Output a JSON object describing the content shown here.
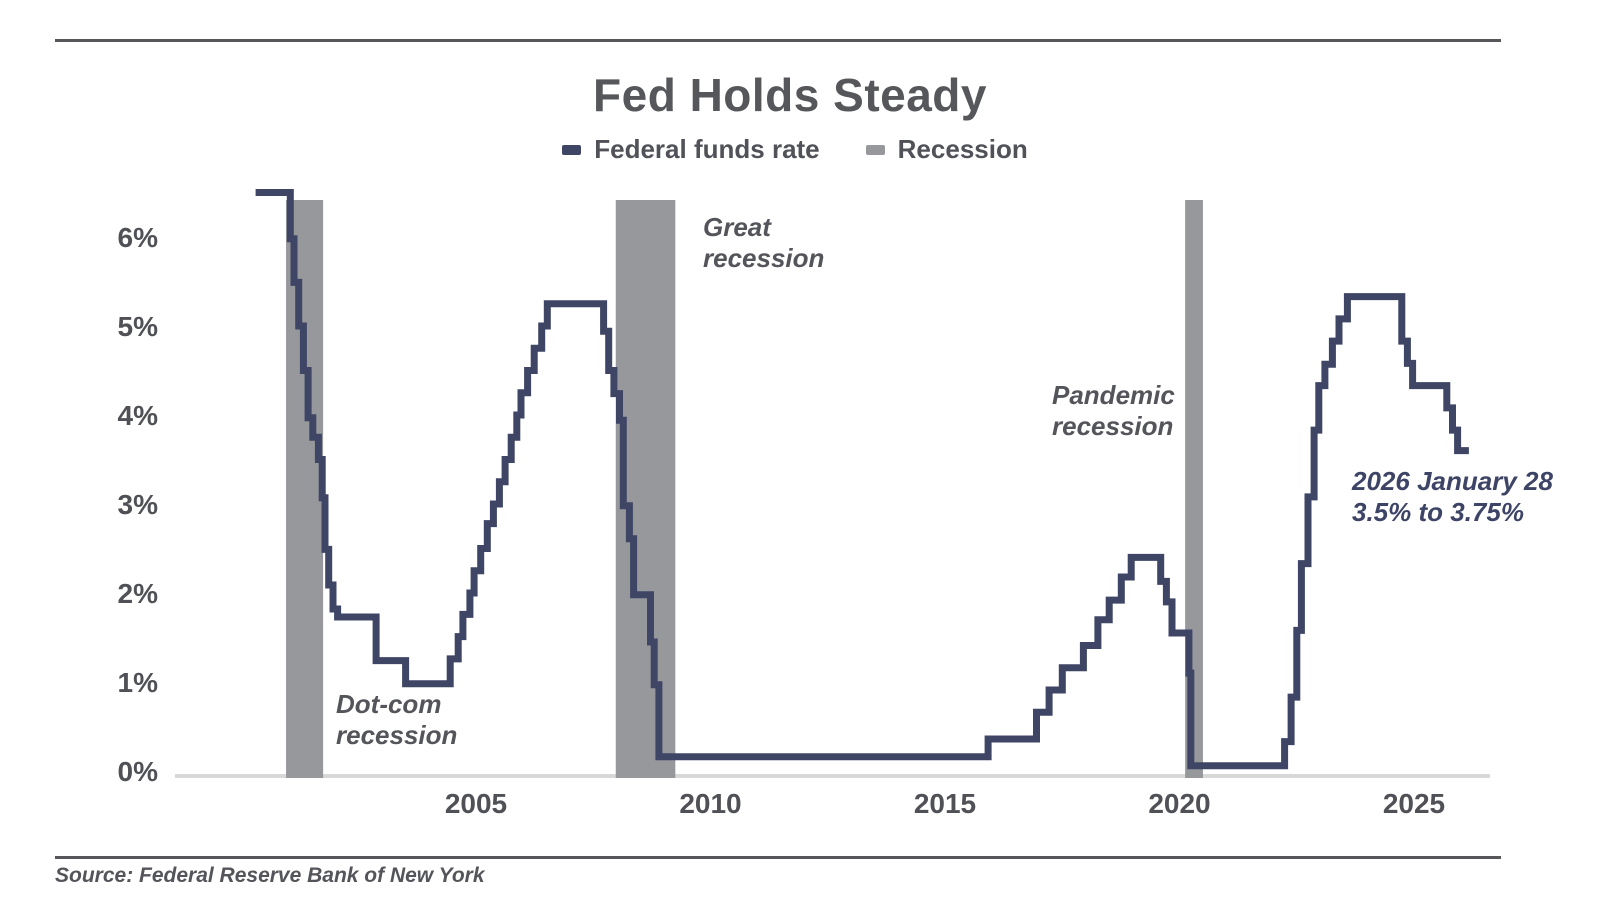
{
  "header": {
    "title": "Fed Holds Steady"
  },
  "legend": {
    "items": [
      {
        "label": "Federal funds rate",
        "color": "#3e4565"
      },
      {
        "label": "Recession",
        "color": "#97989c"
      }
    ]
  },
  "chart_data": {
    "type": "line",
    "title": "Fed Holds Steady",
    "xlabel": "",
    "ylabel": "",
    "grid": false,
    "legend_position": "top",
    "xlim": [
      1998.58,
      2026.62
    ],
    "ylim": [
      0,
      6.42
    ],
    "x_ticks": [
      {
        "label": "2005",
        "value": 2005
      },
      {
        "label": "2010",
        "value": 2010
      },
      {
        "label": "2015",
        "value": 2015
      },
      {
        "label": "2020",
        "value": 2020
      },
      {
        "label": "2025",
        "value": 2025
      }
    ],
    "y_ticks": [
      {
        "label": "0%",
        "value": 0
      },
      {
        "label": "1%",
        "value": 1
      },
      {
        "label": "2%",
        "value": 2
      },
      {
        "label": "3%",
        "value": 3
      },
      {
        "label": "4%",
        "value": 4
      },
      {
        "label": "5%",
        "value": 5
      },
      {
        "label": "6%",
        "value": 6
      }
    ],
    "series": [
      {
        "name": "Federal funds rate",
        "color": "#3e4565",
        "style": "step-after",
        "unit": "percent",
        "points": [
          [
            2000.3,
            6.5
          ],
          [
            2001.04,
            5.98
          ],
          [
            2001.12,
            5.49
          ],
          [
            2001.22,
            5.0
          ],
          [
            2001.32,
            4.5
          ],
          [
            2001.42,
            3.97
          ],
          [
            2001.52,
            3.75
          ],
          [
            2001.64,
            3.5
          ],
          [
            2001.72,
            3.07
          ],
          [
            2001.78,
            2.49
          ],
          [
            2001.86,
            2.09
          ],
          [
            2001.95,
            1.82
          ],
          [
            2002.05,
            1.73
          ],
          [
            2002.87,
            1.24
          ],
          [
            2003.5,
            0.98
          ],
          [
            2004.45,
            1.26
          ],
          [
            2004.62,
            1.51
          ],
          [
            2004.72,
            1.76
          ],
          [
            2004.87,
            2.0
          ],
          [
            2004.96,
            2.25
          ],
          [
            2005.1,
            2.5
          ],
          [
            2005.24,
            2.78
          ],
          [
            2005.37,
            3.0
          ],
          [
            2005.5,
            3.25
          ],
          [
            2005.62,
            3.5
          ],
          [
            2005.75,
            3.75
          ],
          [
            2005.87,
            4.0
          ],
          [
            2005.96,
            4.25
          ],
          [
            2006.1,
            4.5
          ],
          [
            2006.24,
            4.75
          ],
          [
            2006.4,
            5.0
          ],
          [
            2006.52,
            5.25
          ],
          [
            2007.72,
            4.94
          ],
          [
            2007.83,
            4.5
          ],
          [
            2007.94,
            4.24
          ],
          [
            2008.06,
            3.94
          ],
          [
            2008.14,
            2.98
          ],
          [
            2008.27,
            2.61
          ],
          [
            2008.36,
            1.98
          ],
          [
            2008.72,
            1.45
          ],
          [
            2008.8,
            0.97
          ],
          [
            2008.9,
            0.16
          ],
          [
            2015.92,
            0.36
          ],
          [
            2016.95,
            0.66
          ],
          [
            2017.22,
            0.91
          ],
          [
            2017.5,
            1.16
          ],
          [
            2017.95,
            1.41
          ],
          [
            2018.26,
            1.7
          ],
          [
            2018.5,
            1.92
          ],
          [
            2018.76,
            2.18
          ],
          [
            2018.97,
            2.4
          ],
          [
            2019.6,
            2.13
          ],
          [
            2019.72,
            1.9
          ],
          [
            2019.84,
            1.55
          ],
          [
            2020.2,
            1.1
          ],
          [
            2020.24,
            0.06
          ],
          [
            2022.24,
            0.33
          ],
          [
            2022.38,
            0.83
          ],
          [
            2022.5,
            1.58
          ],
          [
            2022.6,
            2.33
          ],
          [
            2022.74,
            3.08
          ],
          [
            2022.87,
            3.83
          ],
          [
            2022.97,
            4.33
          ],
          [
            2023.1,
            4.57
          ],
          [
            2023.26,
            4.83
          ],
          [
            2023.4,
            5.08
          ],
          [
            2023.58,
            5.33
          ],
          [
            2024.74,
            4.83
          ],
          [
            2024.86,
            4.58
          ],
          [
            2024.97,
            4.33
          ],
          [
            2025.7,
            4.08
          ],
          [
            2025.82,
            3.83
          ],
          [
            2025.93,
            3.6
          ],
          [
            2026.17,
            3.6
          ]
        ]
      }
    ],
    "recession_bands": {
      "label": "Recession",
      "color": "#97989c",
      "ranges": [
        {
          "name": "Dot-com recession",
          "from": 2000.95,
          "to": 2001.74
        },
        {
          "name": "Great recession",
          "from": 2007.98,
          "to": 2009.25
        },
        {
          "name": "Pandemic recession",
          "from": 2020.12,
          "to": 2020.5
        }
      ]
    },
    "baseline_color": "#d8d8d8",
    "annotations": [
      "Dot-com recession",
      "Great recession",
      "Pandemic recession",
      "2026 January 28 3.5% to 3.75%"
    ]
  },
  "annotations": {
    "dotcom": {
      "line1": "Dot-com",
      "line2": "recession"
    },
    "great": {
      "line1": "Great",
      "line2": "recession"
    },
    "pandemic": {
      "line1": "Pandemic",
      "line2": "recession"
    },
    "note2026": {
      "line1": "2026 January 28",
      "line2": "3.5% to 3.75%"
    }
  },
  "source": "Source: Federal Reserve Bank of New York"
}
